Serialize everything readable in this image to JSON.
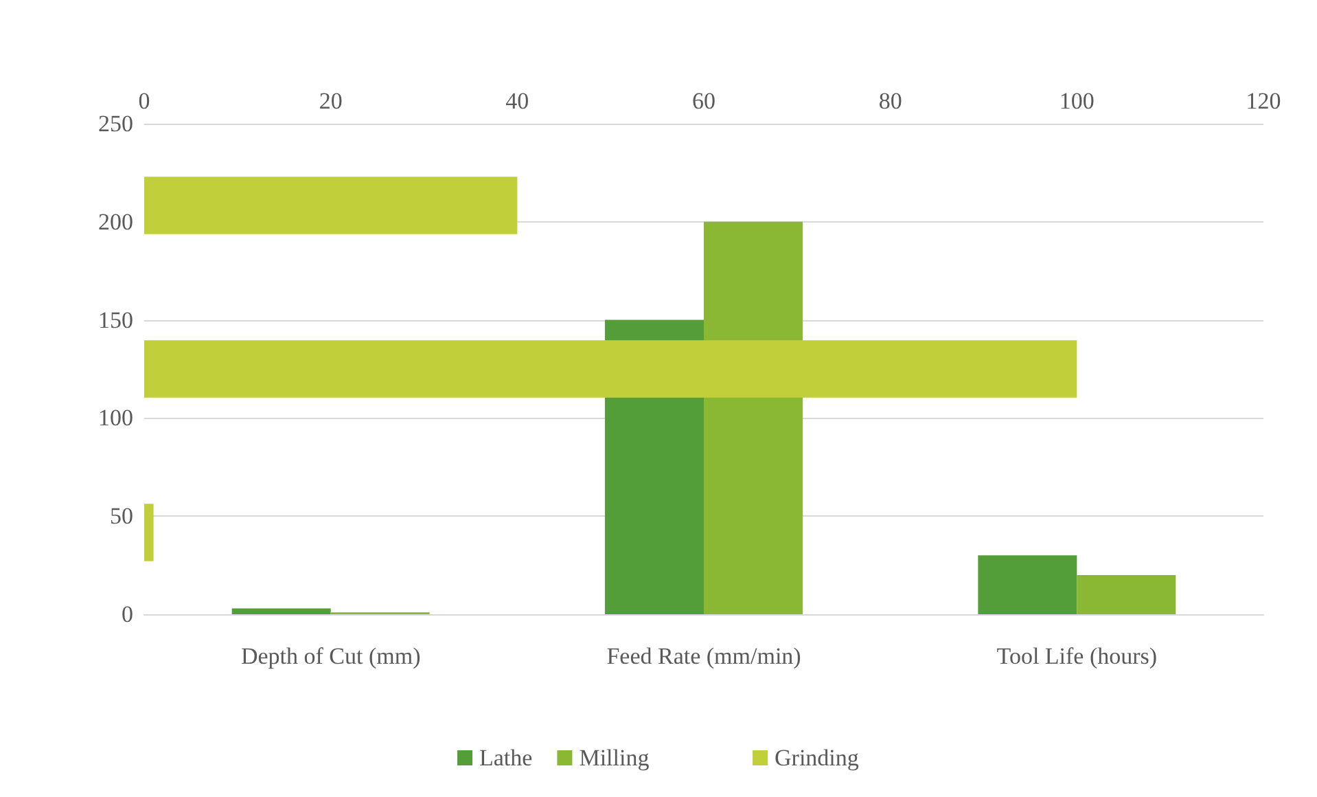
{
  "chart_data": [
    {
      "type": "bar",
      "categories": [
        "Depth of Cut (mm)",
        "Feed Rate (mm/min)",
        "Tool Life (hours)"
      ],
      "series": [
        {
          "name": "Lathe",
          "color": "#549e39",
          "values": [
            3,
            150,
            30
          ]
        },
        {
          "name": "Milling",
          "color": "#8ab833",
          "values": [
            1,
            200,
            20
          ]
        }
      ],
      "ylim": [
        0,
        250
      ],
      "yticks": [
        0,
        50,
        100,
        150,
        200,
        250
      ],
      "grid": "y",
      "legend": "bottom"
    },
    {
      "type": "bar",
      "orientation": "horizontal",
      "categories": [
        null,
        null,
        null
      ],
      "series": [
        {
          "name": "Grinding",
          "color": "#c0cf3a",
          "values": [
            40,
            100,
            1
          ]
        }
      ],
      "xlim": [
        0,
        120
      ],
      "xticks": [
        0,
        20,
        40,
        60,
        80,
        100,
        120
      ],
      "tick_labels": "x",
      "legend": "bottom"
    }
  ]
}
